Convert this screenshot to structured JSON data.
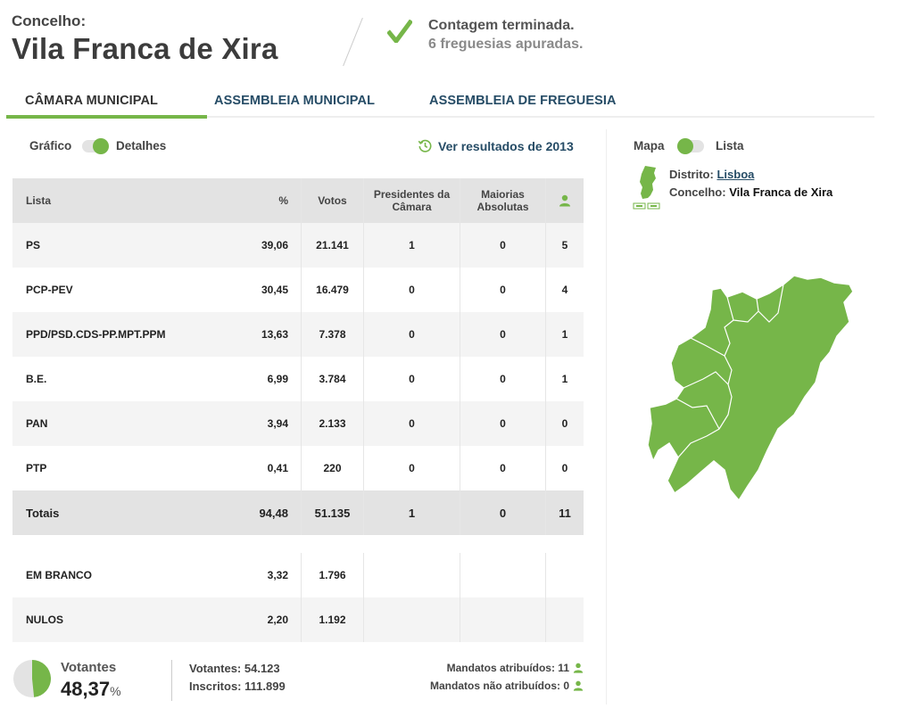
{
  "header": {
    "label": "Concelho:",
    "title": "Vila Franca de Xira",
    "status_title": "Contagem terminada.",
    "status_subtitle": "6 freguesias apuradas."
  },
  "tabs": [
    {
      "label": "CÂMARA MUNICIPAL",
      "active": true
    },
    {
      "label": "ASSEMBLEIA MUNICIPAL",
      "active": false
    },
    {
      "label": "ASSEMBLEIA DE FREGUESIA",
      "active": false
    }
  ],
  "view_toggle": {
    "left": "Gráfico",
    "right": "Detalhes"
  },
  "previous_results": {
    "label": "Ver resultados de 2013",
    "icon": "history-icon"
  },
  "map_toggle": {
    "left": "Mapa",
    "right": "Lista"
  },
  "location": {
    "district_label": "Distrito:",
    "district": "Lisboa",
    "county_label": "Concelho:",
    "county": "Vila Franca de Xira"
  },
  "table": {
    "headers": {
      "lista": "Lista",
      "pct": "%",
      "votos": "Votos",
      "presidentes": "Presidentes da Câmara",
      "maiorias": "Maiorias Absolutas",
      "mandatos_icon": "person-icon"
    },
    "rows": [
      {
        "lista": "PS",
        "pct": "39,06",
        "votos": "21.141",
        "presidentes": "1",
        "maiorias": "0",
        "mandatos": "5"
      },
      {
        "lista": "PCP-PEV",
        "pct": "30,45",
        "votos": "16.479",
        "presidentes": "0",
        "maiorias": "0",
        "mandatos": "4"
      },
      {
        "lista": "PPD/PSD.CDS-PP.MPT.PPM",
        "pct": "13,63",
        "votos": "7.378",
        "presidentes": "0",
        "maiorias": "0",
        "mandatos": "1"
      },
      {
        "lista": "B.E.",
        "pct": "6,99",
        "votos": "3.784",
        "presidentes": "0",
        "maiorias": "0",
        "mandatos": "1"
      },
      {
        "lista": "PAN",
        "pct": "3,94",
        "votos": "2.133",
        "presidentes": "0",
        "maiorias": "0",
        "mandatos": "0"
      },
      {
        "lista": "PTP",
        "pct": "0,41",
        "votos": "220",
        "presidentes": "0",
        "maiorias": "0",
        "mandatos": "0"
      }
    ],
    "totals": {
      "lista": "Totais",
      "pct": "94,48",
      "votos": "51.135",
      "presidentes": "1",
      "maiorias": "0",
      "mandatos": "11"
    },
    "extra": [
      {
        "lista": "EM BRANCO",
        "pct": "3,32",
        "votos": "1.796"
      },
      {
        "lista": "NULOS",
        "pct": "2,20",
        "votos": "1.192"
      }
    ]
  },
  "turnout": {
    "label": "Votantes",
    "percent": "48,37",
    "percent_sign": "%",
    "fraction": 0.4837,
    "votantes": "Votantes: 54.123",
    "inscritos": "Inscritos: 111.899",
    "mandatos_atribuidos": "Mandatos atribuídos: 11",
    "mandatos_nao_atribuidos": "Mandatos não atribuídos: 0"
  },
  "colors": {
    "accent": "#76b649",
    "link": "#264c66"
  }
}
